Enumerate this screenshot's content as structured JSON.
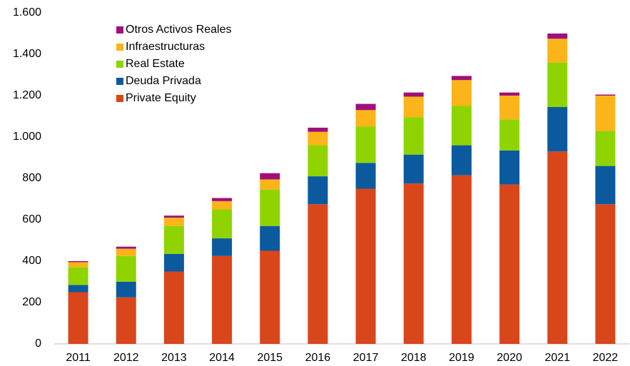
{
  "chart_data": {
    "type": "stacked_bar",
    "categories": [
      "2011",
      "2012",
      "2013",
      "2014",
      "2015",
      "2016",
      "2017",
      "2018",
      "2019",
      "2020",
      "2021",
      "2022"
    ],
    "series": [
      {
        "name": "Private Equity",
        "color": "#d9461c",
        "values": [
          250,
          225,
          350,
          425,
          450,
          675,
          750,
          775,
          815,
          770,
          930,
          675
        ]
      },
      {
        "name": "Deuda Privada",
        "color": "#0b5a9e",
        "values": [
          35,
          75,
          85,
          85,
          120,
          135,
          125,
          140,
          145,
          165,
          215,
          185
        ]
      },
      {
        "name": "Real Estate",
        "color": "#8fd400",
        "values": [
          85,
          125,
          135,
          140,
          175,
          150,
          175,
          180,
          190,
          150,
          215,
          170
        ]
      },
      {
        "name": "Infraestructuras",
        "color": "#fbb419",
        "values": [
          25,
          35,
          40,
          40,
          50,
          65,
          80,
          100,
          125,
          115,
          115,
          170
        ]
      },
      {
        "name": "Otros Activos Reales",
        "color": "#a0107a",
        "values": [
          5,
          10,
          10,
          15,
          30,
          20,
          30,
          20,
          20,
          15,
          25,
          5
        ]
      }
    ],
    "ylim": [
      0,
      1600
    ],
    "yticks": [
      0,
      200,
      400,
      600,
      800,
      {
        "value": 1000,
        "label": "1.000"
      },
      {
        "value": 1200,
        "label": "1.200"
      },
      {
        "value": 1400,
        "label": "1.400"
      },
      {
        "value": 1600,
        "label": "1.600"
      }
    ],
    "legend": "upper left"
  }
}
